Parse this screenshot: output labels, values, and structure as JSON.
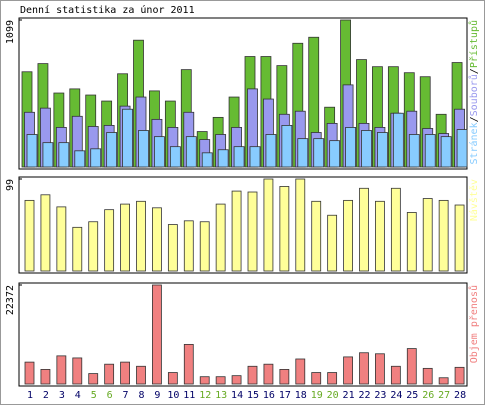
{
  "chart_data": [
    {
      "type": "bar",
      "title": "Denní statistika za únor 2011",
      "ylim": [
        0,
        1099
      ],
      "yticks": [
        1099
      ],
      "legend_separator": "/",
      "series": [
        {
          "name": "Přístupů",
          "color": "#66bb33",
          "values": [
            712,
            773,
            553,
            584,
            538,
            493,
            697,
            948,
            569,
            493,
            728,
            265,
            371,
            523,
            826,
            826,
            758,
            925,
            970,
            447,
            1099,
            803,
            750,
            750,
            705,
            675,
            394,
            781
          ]
        },
        {
          "name": "Souborů",
          "color": "#9999ee",
          "values": [
            409,
            440,
            296,
            379,
            303,
            311,
            455,
            523,
            356,
            296,
            409,
            205,
            243,
            296,
            584,
            508,
            394,
            417,
            258,
            326,
            614,
            326,
            296,
            402,
            417,
            288,
            250,
            432
          ]
        },
        {
          "name": "Stránek",
          "color": "#88ccff",
          "values": [
            243,
            182,
            182,
            121,
            136,
            258,
            432,
            273,
            227,
            152,
            227,
            106,
            129,
            152,
            152,
            243,
            311,
            212,
            212,
            197,
            296,
            273,
            258,
            402,
            243,
            243,
            227,
            280
          ]
        }
      ]
    },
    {
      "type": "bar",
      "ylim": [
        0,
        99
      ],
      "yticks": [
        99
      ],
      "series": [
        {
          "name": "Návštěv",
          "color": "#ffff99",
          "values": [
            76,
            82,
            69,
            47,
            53,
            66,
            72,
            75,
            68,
            50,
            54,
            53,
            72,
            86,
            85,
            99,
            91,
            99,
            75,
            60,
            76,
            89,
            75,
            89,
            63,
            78,
            76,
            71
          ]
        }
      ]
    },
    {
      "type": "bar",
      "ylim": [
        0,
        22372
      ],
      "yticks": [
        22372
      ],
      "categories": [
        "1",
        "2",
        "3",
        "4",
        "5",
        "6",
        "7",
        "8",
        "9",
        "10",
        "11",
        "12",
        "13",
        "14",
        "15",
        "16",
        "17",
        "18",
        "19",
        "20",
        "21",
        "22",
        "23",
        "24",
        "25",
        "26",
        "27",
        "28"
      ],
      "category_colors": [
        "#000066",
        "#000066",
        "#000066",
        "#000066",
        "#66aa22",
        "#66aa22",
        "#000066",
        "#000066",
        "#000066",
        "#000066",
        "#000066",
        "#66aa22",
        "#66aa22",
        "#000066",
        "#000066",
        "#000066",
        "#000066",
        "#000066",
        "#66aa22",
        "#66aa22",
        "#000066",
        "#000066",
        "#000066",
        "#000066",
        "#000066",
        "#66aa22",
        "#66aa22",
        "#000066"
      ],
      "series": [
        {
          "name": "Objem přenosů",
          "color": "#f08080",
          "values": [
            4946,
            3297,
            6359,
            5888,
            2355,
            4475,
            4946,
            4004,
            22372,
            2591,
            8949,
            1649,
            1649,
            1884,
            4004,
            4475,
            3297,
            5652,
            2591,
            2591,
            6123,
            7065,
            6830,
            4004,
            8007,
            3533,
            1413,
            3768
          ]
        }
      ]
    }
  ]
}
